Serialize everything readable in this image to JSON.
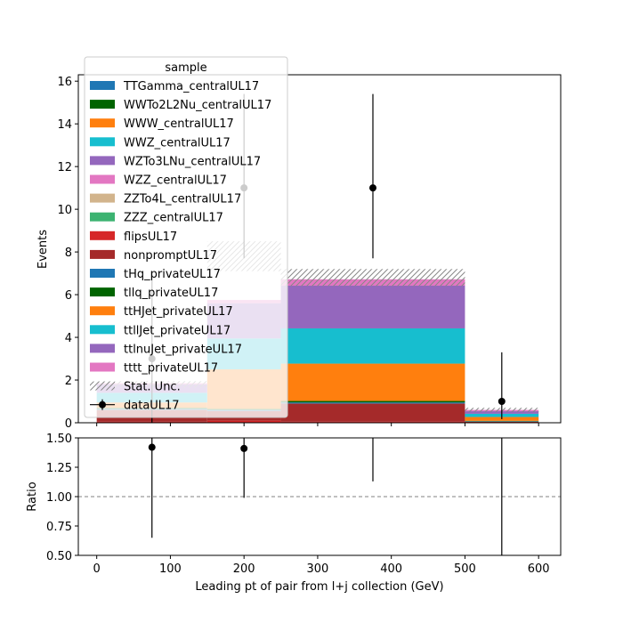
{
  "chart_data": {
    "type": "bar",
    "stacked": true,
    "xlabel": "Leading pt of pair from l+j collection (GeV)",
    "ylabel_main": "Events",
    "ylabel_ratio": "Ratio",
    "xlim": [
      -25,
      630
    ],
    "ylim_main": [
      0,
      16.3
    ],
    "ylim_ratio": [
      0.5,
      1.5
    ],
    "x_ticks": [
      0,
      100,
      200,
      300,
      400,
      500,
      600
    ],
    "y_ticks_main": [
      0,
      2,
      4,
      6,
      8,
      10,
      12,
      14,
      16
    ],
    "y_ticks_ratio": [
      0.5,
      0.75,
      1.0,
      1.25,
      1.5
    ],
    "y_tick_labels_ratio": [
      "0.50",
      "0.75",
      "1.00",
      "1.25",
      "1.50"
    ],
    "ratio_reference_line": 1.0,
    "bin_edges": [
      0,
      150,
      250,
      500,
      600
    ],
    "legend_title": "sample",
    "legend_placement": "upper-left",
    "series": [
      {
        "name": "TTGamma_centralUL17",
        "color": "#1f77b4",
        "values": [
          0.0,
          0.0,
          0.0,
          0.0
        ]
      },
      {
        "name": "WWTo2L2Nu_centralUL17",
        "color": "#006400",
        "values": [
          0.0,
          0.0,
          0.0,
          0.0
        ]
      },
      {
        "name": "WWW_centralUL17",
        "color": "#ff7f0e",
        "values": [
          0.0,
          0.0,
          0.0,
          0.0
        ]
      },
      {
        "name": "WWZ_centralUL17",
        "color": "#17becf",
        "values": [
          0.0,
          0.0,
          0.0,
          0.0
        ]
      },
      {
        "name": "WZTo3LNu_centralUL17",
        "color": "#9467bd",
        "values": [
          0.0,
          0.0,
          0.0,
          0.0
        ]
      },
      {
        "name": "WZZ_centralUL17",
        "color": "#e377c2",
        "values": [
          0.0,
          0.0,
          0.0,
          0.0
        ]
      },
      {
        "name": "ZZTo4L_centralUL17",
        "color": "#d2b48c",
        "values": [
          0.0,
          0.0,
          0.0,
          0.0
        ]
      },
      {
        "name": "ZZZ_centralUL17",
        "color": "#3cb371",
        "values": [
          0.0,
          0.0,
          0.0,
          0.0
        ]
      },
      {
        "name": "flipsUL17",
        "color": "#d62728",
        "values": [
          0.05,
          0.1,
          0.05,
          0.0
        ]
      },
      {
        "name": "nonpromptUL17",
        "color": "#a52a2a",
        "values": [
          0.55,
          0.45,
          0.85,
          0.05
        ]
      },
      {
        "name": "tHq_privateUL17",
        "color": "#1f77b4",
        "values": [
          0.05,
          0.05,
          0.05,
          0.02
        ]
      },
      {
        "name": "tllq_privateUL17",
        "color": "#006400",
        "values": [
          0.05,
          0.05,
          0.07,
          0.02
        ]
      },
      {
        "name": "ttHJet_privateUL17",
        "color": "#ff7f0e",
        "values": [
          0.25,
          1.85,
          1.75,
          0.18
        ]
      },
      {
        "name": "ttllJet_privateUL17",
        "color": "#17becf",
        "values": [
          0.45,
          1.45,
          1.65,
          0.15
        ]
      },
      {
        "name": "ttlnuJet_privateUL17",
        "color": "#9467bd",
        "values": [
          0.4,
          1.65,
          2.0,
          0.12
        ]
      },
      {
        "name": "tttt_privateUL17",
        "color": "#e377c2",
        "values": [
          0.05,
          0.15,
          0.3,
          0.06
        ]
      }
    ],
    "stat_unc_label": "Stat. Unc.",
    "stat_unc": [
      {
        "low": 1.65,
        "high": 1.95
      },
      {
        "low": 7.1,
        "high": 8.5
      },
      {
        "low": 6.4,
        "high": 7.2
      },
      {
        "low": 0.5,
        "high": 0.7
      }
    ],
    "data_series": {
      "name": "dataUL17",
      "color": "#000000",
      "points": [
        {
          "x": 75,
          "y": 3.0,
          "err_low": 3.0,
          "err_high": 4.0
        },
        {
          "x": 200,
          "y": 11.0,
          "err_low": 3.3,
          "err_high": 4.4
        },
        {
          "x": 375,
          "y": 11.0,
          "err_low": 3.3,
          "err_high": 4.4
        },
        {
          "x": 550,
          "y": 1.0,
          "err_low": 0.83,
          "err_high": 2.3
        }
      ]
    },
    "ratio_points": [
      {
        "x": 75,
        "y": 1.42,
        "err_low": 0.77,
        "err_high": 0.9
      },
      {
        "x": 200,
        "y": 1.41,
        "err_low": 0.42,
        "err_high": 0.57
      },
      {
        "x": 375,
        "y": 1.52,
        "err_low": 0.39,
        "err_high": 0.61
      },
      {
        "x": 550,
        "y": 1.7,
        "err_low": 1.4,
        "err_high": 2.0
      }
    ]
  }
}
